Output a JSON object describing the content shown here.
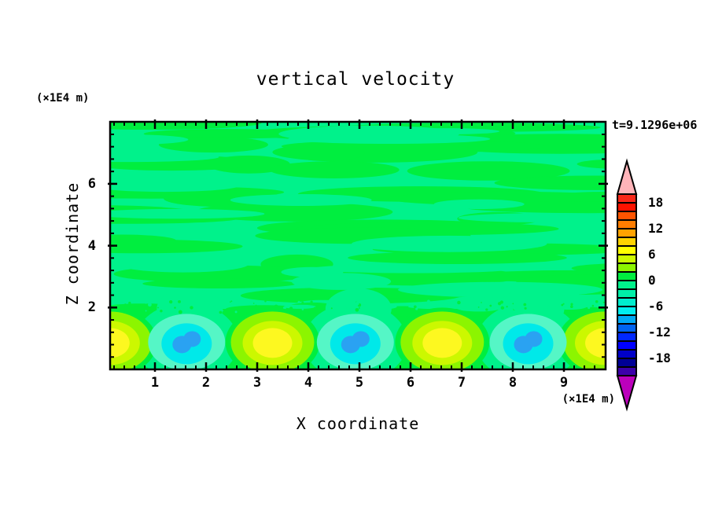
{
  "header": {
    "title": "vertical velocity",
    "timestamp": "t=9.1296e+06"
  },
  "axes": {
    "x": {
      "label": "X coordinate",
      "unit": "(×1E4 m)",
      "major_ticks": [
        1,
        2,
        3,
        4,
        5,
        6,
        7,
        8,
        9
      ],
      "minor_step": 0.2,
      "range": [
        0.123,
        9.815
      ]
    },
    "y": {
      "label": "Z coordinate",
      "unit": "(×1E4 m)",
      "major_ticks": [
        2,
        4,
        6
      ],
      "minor_step": 0.4,
      "range": [
        0,
        8.0
      ]
    }
  },
  "colorbar": {
    "segment_colors_top_to_bottom": [
      "#fa2819",
      "#fe1200",
      "#ff5400",
      "#ff7d00",
      "#ffa200",
      "#ffd300",
      "#ffff00",
      "#ccfa00",
      "#8cf500",
      "#00ee3f",
      "#00f28b",
      "#00f0a8",
      "#00eece",
      "#00efef",
      "#00aaf5",
      "#0064f0",
      "#0028ff",
      "#0000ff",
      "#0000c8",
      "#000096",
      "#3c00aa"
    ],
    "over_color": "#ffb4b9",
    "under_color": "#bb00bb",
    "labels": [
      "18",
      "12",
      "6",
      "0",
      "-6",
      "-12",
      "-18"
    ],
    "label_boundary_indices": [
      1,
      4,
      7,
      10,
      13,
      16,
      19
    ],
    "value_step": 2,
    "top_value": 20
  },
  "chart_data": {
    "type": "filled_contour",
    "field_name": "vertical velocity",
    "title": "vertical velocity",
    "xlabel": "X coordinate",
    "ylabel": "Z coordinate",
    "x_unit": "(×1E4 m)",
    "z_unit": "(×1E4 m)",
    "time_annotation": "t=9.1296e+06",
    "xlim": [
      0.12,
      9.82
    ],
    "zlim": [
      0,
      8.05
    ],
    "contour_interval": 2,
    "colorbar_range": [
      -22,
      20
    ],
    "colorbar_labeled_levels": [
      18,
      12,
      6,
      0,
      -6,
      -12,
      -18
    ],
    "background_field": "near-zero velocity, mottled horizontal bands alternating between -2..0 and 0..2",
    "updrafts": [
      {
        "x": 0.12,
        "z": 0.88,
        "peak_value": 7
      },
      {
        "x": 3.3,
        "z": 0.88,
        "peak_value": 7
      },
      {
        "x": 6.62,
        "z": 0.88,
        "peak_value": 7
      },
      {
        "x": 9.8,
        "z": 0.88,
        "peak_value": 7
      }
    ],
    "downdrafts": [
      {
        "x": 1.62,
        "z": 0.88,
        "min_value": -9
      },
      {
        "x": 4.92,
        "z": 0.88,
        "min_value": -9
      },
      {
        "x": 8.3,
        "z": 0.88,
        "min_value": -9
      }
    ],
    "colors": {
      "band_positive_0_2": "#00ee3f",
      "band_negative_2_0": "#00f28b",
      "updraft_rings": [
        "#8cf500",
        "#ccf800",
        "#fdf820"
      ],
      "downdraft_rings": [
        "#55f6c6",
        "#00e9e9",
        "#2aa2f2"
      ]
    }
  }
}
